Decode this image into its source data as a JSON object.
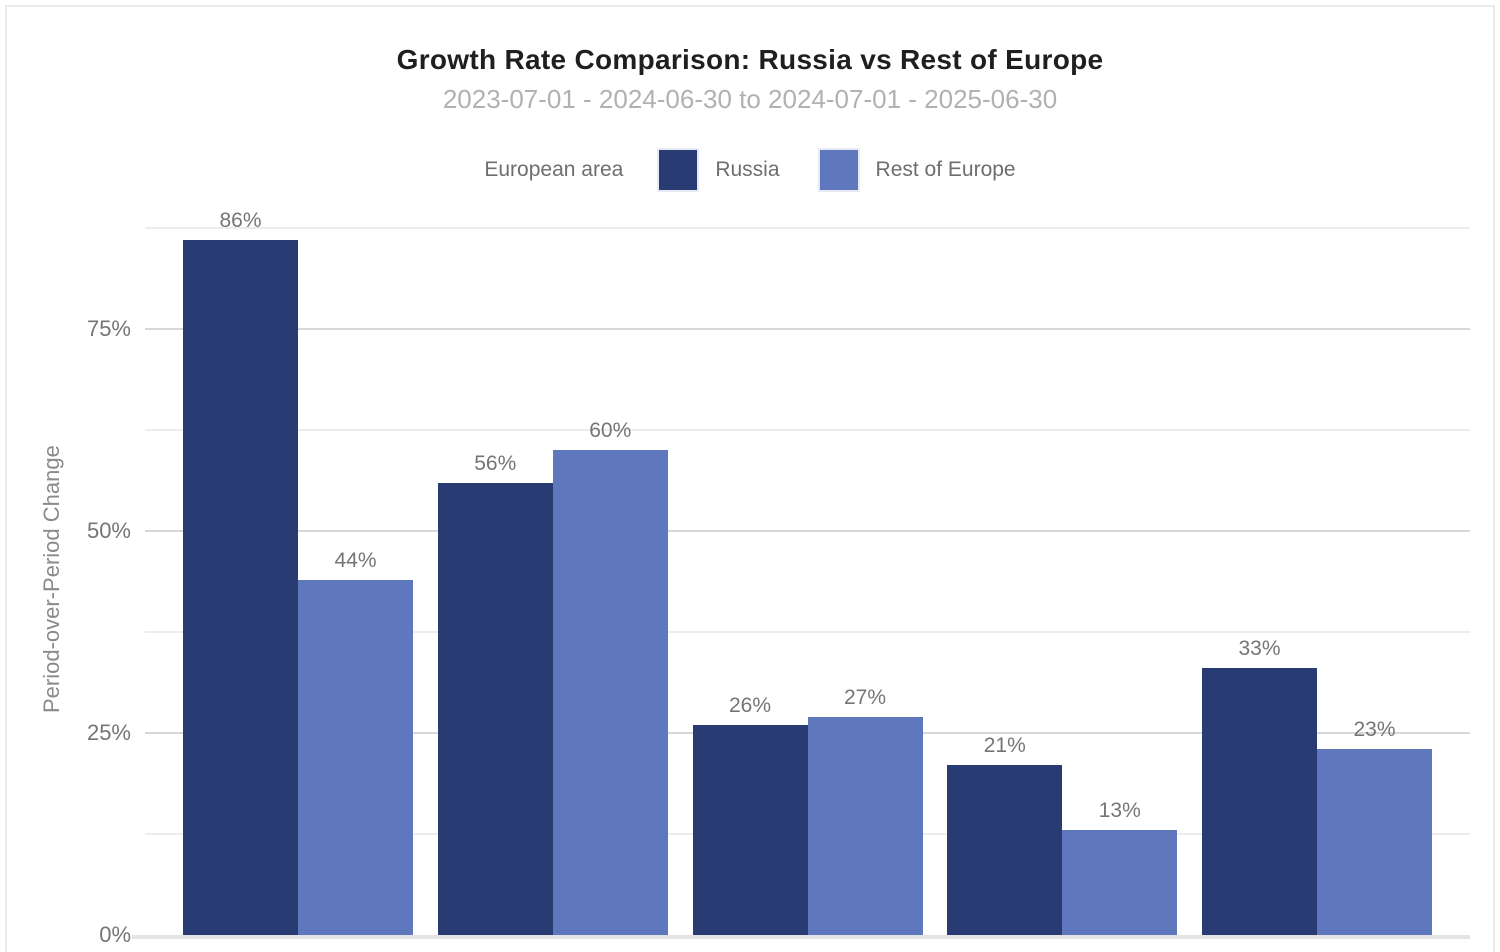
{
  "chart_data": {
    "type": "bar",
    "grouped": true,
    "title": "Growth Rate Comparison: Russia vs Rest of Europe",
    "subtitle": "2023-07-01 - 2024-06-30 to 2024-07-01 - 2025-06-30",
    "ylabel": "Period-over-Period Change",
    "xlabel": "",
    "categories": [
      "",
      "",
      "",
      "",
      ""
    ],
    "series": [
      {
        "name": "Russia",
        "color": "#283b73",
        "values": [
          86,
          56,
          26,
          21,
          33
        ],
        "labels": [
          "86%",
          "56%",
          "26%",
          "21%",
          "33%"
        ]
      },
      {
        "name": "Rest of Europe",
        "color": "#5f77bc",
        "values": [
          44,
          60,
          27,
          13,
          23
        ],
        "labels": [
          "44%",
          "60%",
          "27%",
          "13%",
          "23%"
        ]
      }
    ],
    "ylim": [
      0,
      88
    ],
    "yticks": [
      {
        "value": 0,
        "label": "0%"
      },
      {
        "value": 25,
        "label": "25%"
      },
      {
        "value": 50,
        "label": "50%"
      },
      {
        "value": 75,
        "label": "75%"
      }
    ],
    "minor_gridlines": [
      12.5,
      37.5,
      62.5,
      87.5
    ],
    "grid": true,
    "legend_position": "top"
  },
  "legend": {
    "label": "European area"
  },
  "colors": {
    "russia": "#283b73",
    "rest_of_europe": "#5f77bc",
    "title_text": "#1f1f1f",
    "subtitle_text": "#b1b1b1",
    "axis_text": "#757575",
    "gridline_major": "#d8d8d8",
    "gridline_minor": "#ededed",
    "card_border": "#ebebeb"
  }
}
